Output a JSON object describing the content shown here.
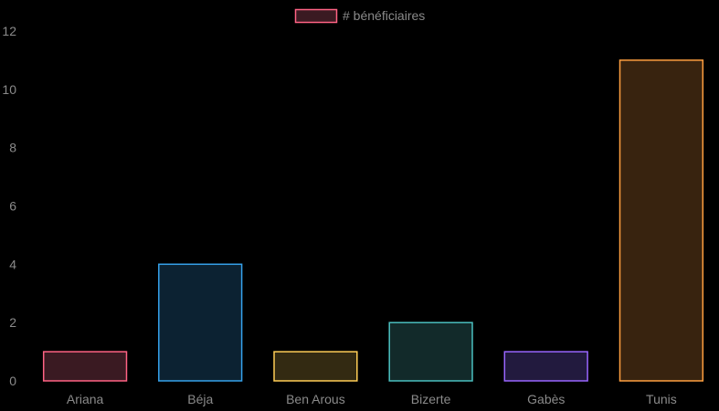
{
  "chart_data": {
    "type": "bar",
    "categories": [
      "Ariana",
      "Béja",
      "Ben Arous",
      "Bizerte",
      "Gabès",
      "Tunis"
    ],
    "series": [
      {
        "name": "# bénéficiaires",
        "values": [
          1,
          4,
          1,
          2,
          1,
          11
        ]
      }
    ],
    "ylim": [
      0,
      12
    ],
    "yticks": [
      "0",
      "2",
      "4",
      "6",
      "8",
      "10",
      "12"
    ],
    "legend_position": "top-center",
    "grid": false,
    "bar_border_colors": [
      "#ff6384",
      "#36a2eb",
      "#ffce56",
      "#4bc0c0",
      "#9966ff",
      "#ff9f40"
    ],
    "bar_fill_colors": [
      "#3a1a22",
      "#0c2232",
      "#332a12",
      "#122a2a",
      "#221a3e",
      "#38230f"
    ],
    "legend_swatch_border": "#ff6384",
    "legend_swatch_fill": "#3a1a22"
  }
}
